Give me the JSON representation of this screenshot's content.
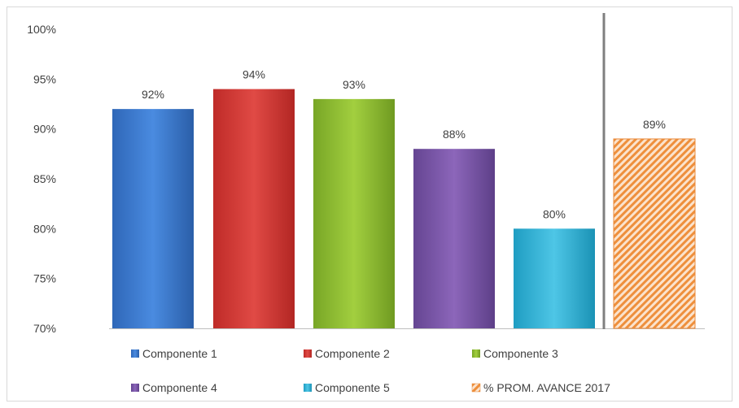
{
  "chart_data": {
    "type": "bar",
    "categories": [
      "Componente 1",
      "Componente 2",
      "Componente 3",
      "Componente 4",
      "Componente 5",
      "% PROM. AVANCE 2017"
    ],
    "values": [
      92,
      94,
      93,
      88,
      80,
      89
    ],
    "data_labels": [
      "92%",
      "94%",
      "93%",
      "88%",
      "80%",
      "89%"
    ],
    "ylim": [
      70,
      100
    ],
    "yticks": [
      70,
      75,
      80,
      85,
      90,
      95,
      100
    ],
    "ytick_labels": [
      "70%",
      "75%",
      "80%",
      "85%",
      "90%",
      "95%",
      "100%"
    ],
    "title": "",
    "xlabel": "",
    "ylabel": "",
    "grid": false,
    "legend": {
      "placement": "bottom",
      "entries": [
        "Componente 1",
        "Componente 2",
        "Componente 3",
        "Componente 4",
        "Componente 5",
        "% PROM. AVANCE 2017"
      ]
    },
    "colors": [
      "#3b7bd4",
      "#d63a35",
      "#8ebd2f",
      "#7a55a6",
      "#2fb4d6",
      "#f5a45e"
    ],
    "patterns": [
      "solid",
      "solid",
      "solid",
      "solid",
      "solid",
      "diagonal-hatch"
    ]
  }
}
